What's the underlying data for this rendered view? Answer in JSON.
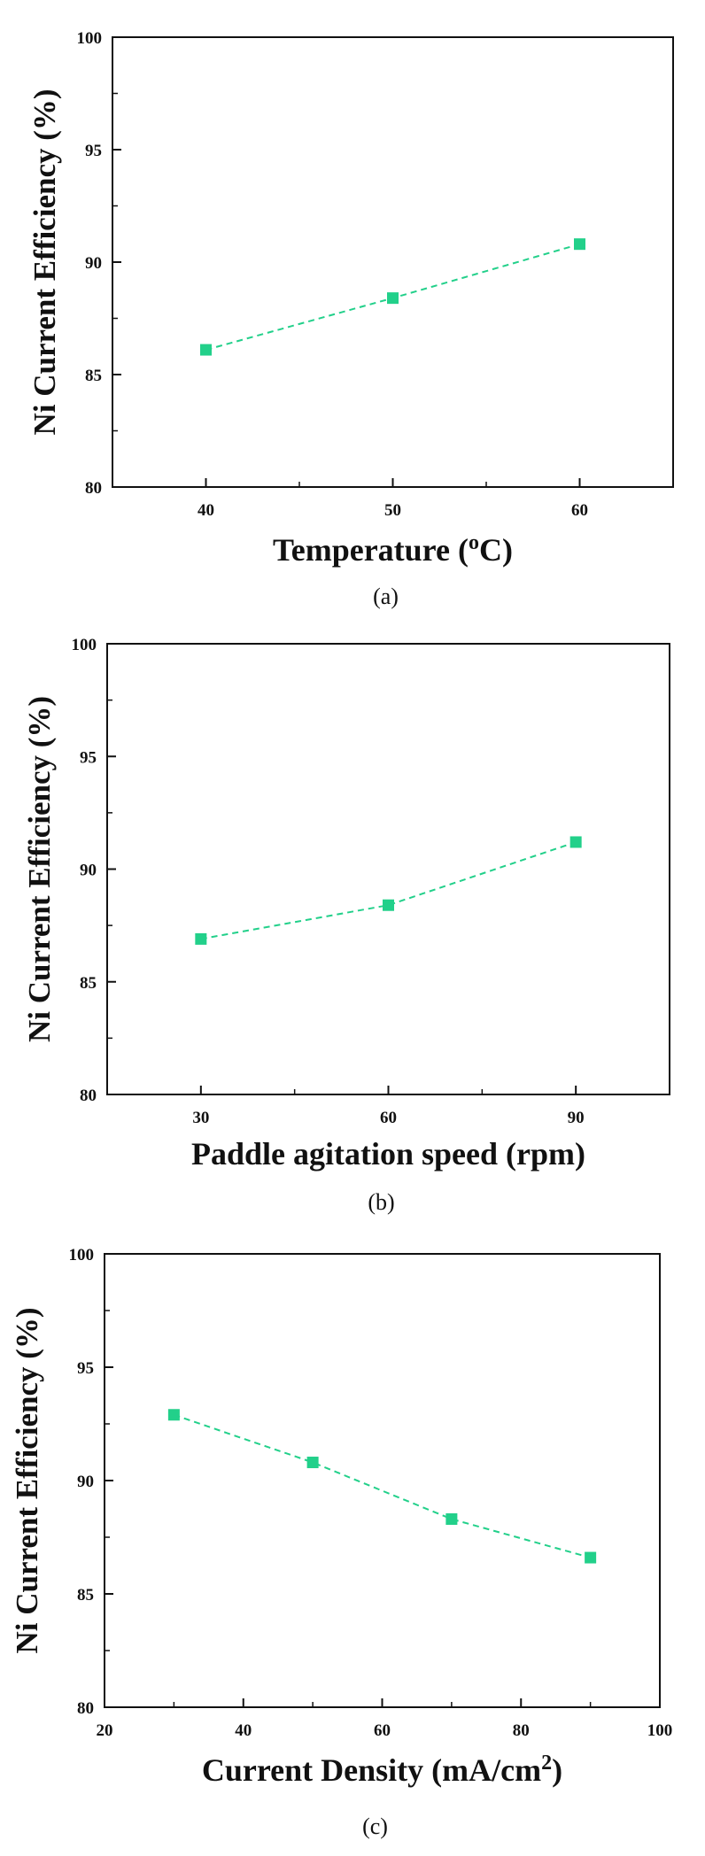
{
  "colors": {
    "series": "#22d08a",
    "axis": "#111111"
  },
  "chart_data": [
    {
      "type": "line",
      "caption": "(a)",
      "xlabel": "Temperature (",
      "xlabel_sup": "o",
      "xlabel_tail": "C)",
      "ylabel": "Ni Current Efficiency (%)",
      "xlim": [
        35,
        65
      ],
      "ylim": [
        80,
        100
      ],
      "xticks": [
        40,
        50,
        60
      ],
      "yticks": [
        80,
        85,
        90,
        95,
        100
      ],
      "x": [
        40,
        50,
        60
      ],
      "values": [
        86.1,
        88.4,
        90.8
      ]
    },
    {
      "type": "line",
      "caption": "(b)",
      "xlabel": "Paddle agitation speed (rpm)",
      "xlabel_sup": "",
      "xlabel_tail": "",
      "ylabel": "Ni Current Efficiency (%)",
      "xlim": [
        15,
        105
      ],
      "ylim": [
        80,
        100
      ],
      "xticks": [
        30,
        60,
        90
      ],
      "yticks": [
        80,
        85,
        90,
        95,
        100
      ],
      "x": [
        30,
        60,
        90
      ],
      "values": [
        86.9,
        88.4,
        91.2
      ]
    },
    {
      "type": "line",
      "caption": "(c)",
      "xlabel": "Current Density (mA/cm",
      "xlabel_sup": "2",
      "xlabel_tail": ")",
      "ylabel": "Ni Current Efficiency (%)",
      "xlim": [
        20,
        100
      ],
      "ylim": [
        80,
        100
      ],
      "xticks": [
        20,
        40,
        60,
        80,
        100
      ],
      "yticks": [
        80,
        85,
        90,
        95,
        100
      ],
      "x": [
        30,
        50,
        70,
        90
      ],
      "values": [
        92.9,
        90.8,
        88.3,
        86.6
      ]
    }
  ]
}
